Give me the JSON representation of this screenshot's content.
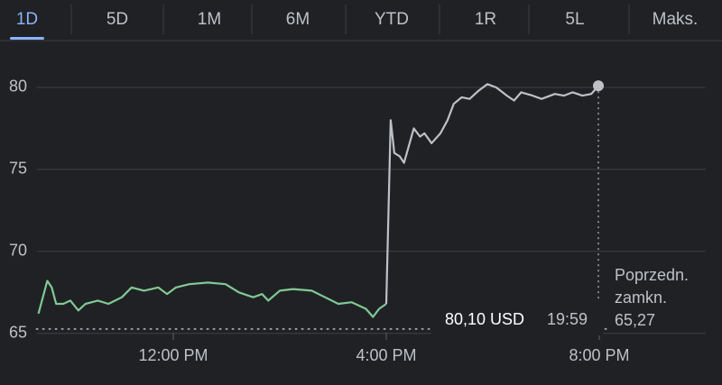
{
  "tabs": [
    "1D",
    "5D",
    "1M",
    "6M",
    "YTD",
    "1R",
    "5L",
    "Maks."
  ],
  "selected_tab": 0,
  "chart_data": {
    "type": "line",
    "xlim": [
      566,
      1320
    ],
    "xticks": [
      {
        "value": 720,
        "label": "12:00 PM"
      },
      {
        "value": 960,
        "label": "4:00 PM"
      },
      {
        "value": 1200,
        "label": "8:00 PM"
      }
    ],
    "ylim": [
      64.6,
      82
    ],
    "yticks": [
      65,
      70,
      75,
      80
    ],
    "grid": true,
    "series": [
      {
        "color": "#81c995",
        "x": [
          568,
          578,
          583,
          588,
          596,
          604,
          613,
          621,
          635,
          647,
          662,
          673,
          687,
          703,
          713,
          723,
          738,
          759,
          779,
          794,
          810,
          820,
          827,
          840,
          855,
          876,
          891,
          906,
          921,
          937,
          945,
          952,
          960
        ],
        "values": [
          66.2,
          68.2,
          67.8,
          66.8,
          66.8,
          67.0,
          66.4,
          66.8,
          67.0,
          66.8,
          67.2,
          67.8,
          67.6,
          67.8,
          67.4,
          67.8,
          68.0,
          68.1,
          68.0,
          67.5,
          67.2,
          67.4,
          67.0,
          67.6,
          67.7,
          67.6,
          67.2,
          66.8,
          66.9,
          66.5,
          66.0,
          66.5,
          66.8
        ]
      },
      {
        "color": "#bdc1c6",
        "x": [
          960,
          965,
          969,
          975,
          980,
          991,
          998,
          1003,
          1011,
          1021,
          1029,
          1036,
          1045,
          1054,
          1064,
          1074,
          1084,
          1096,
          1104,
          1112,
          1125,
          1135,
          1150,
          1160,
          1170,
          1181,
          1191,
          1199
        ],
        "values": [
          66.8,
          78.0,
          76.0,
          75.8,
          75.4,
          77.5,
          77.0,
          77.2,
          76.6,
          77.2,
          78.0,
          79.0,
          79.4,
          79.3,
          79.8,
          80.2,
          80.0,
          79.5,
          79.2,
          79.7,
          79.5,
          79.3,
          79.6,
          79.5,
          79.7,
          79.5,
          79.6,
          80.1
        ]
      }
    ],
    "last_price": {
      "label": "80,10 USD",
      "time": "19:59"
    },
    "previous_close": {
      "label": [
        "Poprzedn.",
        "zamkn."
      ],
      "value": 65.27,
      "value_label": "65,27"
    }
  }
}
